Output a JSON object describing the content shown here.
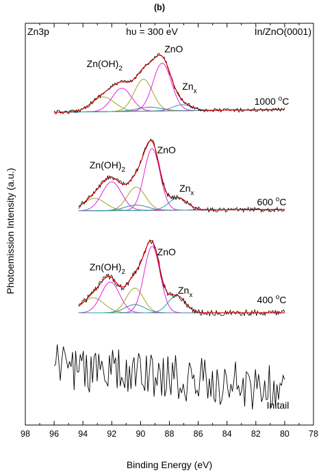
{
  "chart_data": {
    "type": "line",
    "panel_label": "(b)",
    "xlabel": "Binding Energy (eV)",
    "ylabel": "Photoemission Intensity (a.u.)",
    "xlim": [
      98,
      78
    ],
    "x_ticks": [
      98,
      96,
      94,
      92,
      90,
      88,
      86,
      84,
      82,
      80,
      78
    ],
    "x_reversed": true,
    "grid": false,
    "annotations": {
      "core_level": "Zn3p",
      "photon_energy": "hυ = 300 eV",
      "sample": "In/ZnO(0001)"
    },
    "spectra": [
      {
        "label": "1000 °C",
        "label_base": "1000 ",
        "label_sup": "o",
        "label_unit": "C",
        "x_range": [
          96,
          80
        ],
        "peak_labels": [
          {
            "base": "Zn(OH)",
            "sub": "2",
            "x": 92.5
          },
          {
            "base": "ZnO",
            "sub": "",
            "x": 87.7
          },
          {
            "base": "Zn",
            "sub": "x",
            "x": 86.6
          }
        ],
        "components": [
          {
            "color": "#a0a020",
            "center": 92.6,
            "height": 0.22,
            "fwhm": 1.9
          },
          {
            "color": "#e020e0",
            "center": 91.3,
            "height": 0.35,
            "fwhm": 1.6
          },
          {
            "color": "#a0a020",
            "center": 89.8,
            "height": 0.48,
            "fwhm": 1.5
          },
          {
            "color": "#e020e0",
            "center": 88.5,
            "height": 0.72,
            "fwhm": 1.5
          },
          {
            "color": "#4080a0",
            "center": 89.4,
            "height": 0.06,
            "fwhm": 2.0
          },
          {
            "color": "#20a0a0",
            "center": 87.1,
            "height": 0.09,
            "fwhm": 1.6
          }
        ]
      },
      {
        "label": "600 °C",
        "label_base": "600 ",
        "label_sup": "o",
        "label_unit": "C",
        "x_range": [
          94.3,
          80
        ],
        "peak_labels": [
          {
            "base": "Zn(OH)",
            "sub": "2",
            "x": 92.3
          },
          {
            "base": "ZnO",
            "sub": "",
            "x": 88.2
          },
          {
            "base": "Zn",
            "sub": "x",
            "x": 86.8
          }
        ],
        "components": [
          {
            "color": "#a0a020",
            "center": 93.2,
            "height": 0.18,
            "fwhm": 1.8
          },
          {
            "color": "#e020e0",
            "center": 92.0,
            "height": 0.42,
            "fwhm": 1.6
          },
          {
            "color": "#a0a020",
            "center": 90.3,
            "height": 0.34,
            "fwhm": 1.5
          },
          {
            "color": "#e020e0",
            "center": 89.2,
            "height": 0.9,
            "fwhm": 1.3
          },
          {
            "color": "#4080a0",
            "center": 90.3,
            "height": 0.08,
            "fwhm": 1.8
          },
          {
            "color": "#20a0a0",
            "center": 87.4,
            "height": 0.18,
            "fwhm": 1.5
          }
        ]
      },
      {
        "label": "400 °C",
        "label_base": "400 ",
        "label_sup": "o",
        "label_unit": "C",
        "x_range": [
          94.3,
          80
        ],
        "peak_labels": [
          {
            "base": "Zn(OH)",
            "sub": "2",
            "x": 92.3
          },
          {
            "base": "ZnO",
            "sub": "",
            "x": 88.2
          },
          {
            "base": "Zn",
            "sub": "x",
            "x": 86.9
          }
        ],
        "components": [
          {
            "color": "#a0a020",
            "center": 93.3,
            "height": 0.22,
            "fwhm": 1.8
          },
          {
            "color": "#e020e0",
            "center": 92.1,
            "height": 0.45,
            "fwhm": 1.5
          },
          {
            "color": "#a0a020",
            "center": 90.4,
            "height": 0.36,
            "fwhm": 1.4
          },
          {
            "color": "#e020e0",
            "center": 89.2,
            "height": 0.97,
            "fwhm": 1.3
          },
          {
            "color": "#4080a0",
            "center": 90.4,
            "height": 0.12,
            "fwhm": 1.6
          },
          {
            "color": "#20a0a0",
            "center": 87.5,
            "height": 0.25,
            "fwhm": 1.4
          }
        ]
      },
      {
        "label": "Initail",
        "x_range": [
          96,
          80
        ],
        "raw_only": true
      }
    ],
    "colors": {
      "data": "#000000",
      "envelope": "#e00000",
      "background": "#2050c0"
    }
  }
}
